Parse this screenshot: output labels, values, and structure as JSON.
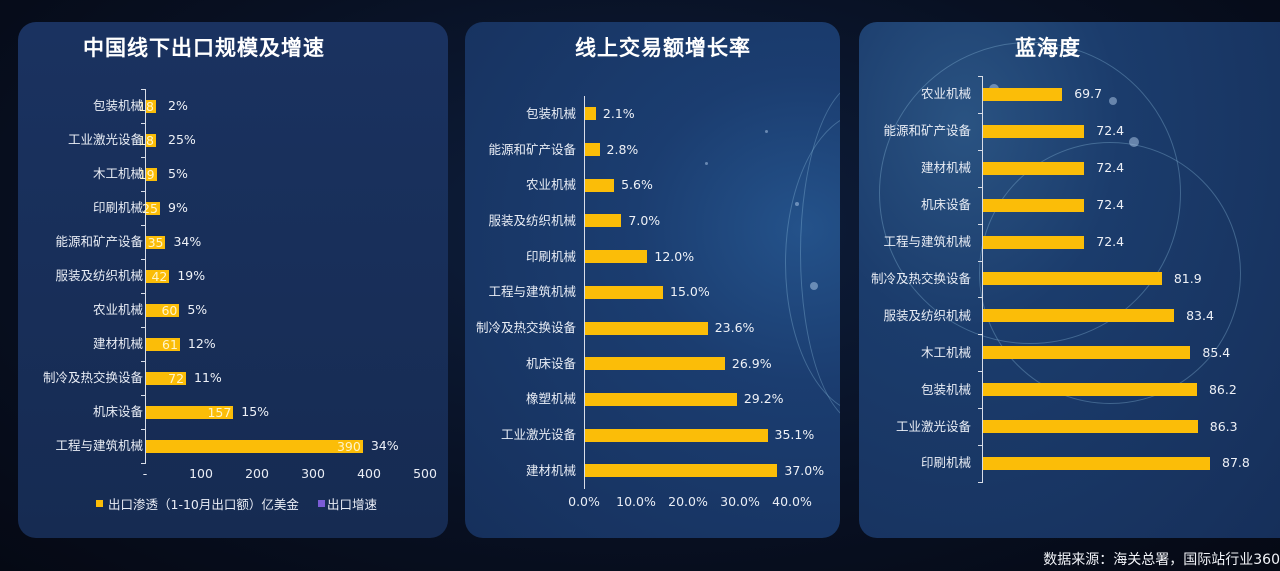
{
  "colors": {
    "bar": "#fbbd08",
    "growth_legend": "#7b5cd6",
    "panel": "#172c55",
    "background": "#070b18"
  },
  "source_note": "数据来源：海关总署，国际站行业360",
  "chart_data": [
    {
      "type": "bar",
      "orientation": "horizontal",
      "title": "中国线下出口规模及增速",
      "categories": [
        "包装机械",
        "工业激光设备",
        "木工机械",
        "印刷机械",
        "能源和矿产设备",
        "服装及纺织机械",
        "农业机械",
        "建材机械",
        "制冷及热交换设备",
        "机床设备",
        "工程与建筑机械"
      ],
      "series": [
        {
          "name": "出口渗透（1-10月出口额）亿美金",
          "values": [
            18,
            18,
            19,
            25,
            35,
            42,
            60,
            61,
            72,
            157,
            390
          ]
        },
        {
          "name": "出口增速",
          "values": [
            "2%",
            "25%",
            "5%",
            "9%",
            "34%",
            "19%",
            "5%",
            "12%",
            "11%",
            "15%",
            "34%"
          ]
        }
      ],
      "xlabel": "",
      "ylabel": "",
      "xticks": [
        "-",
        "100",
        "200",
        "300",
        "400",
        "500"
      ],
      "xlim": [
        0,
        500
      ],
      "legend_position": "bottom",
      "grid": false
    },
    {
      "type": "bar",
      "orientation": "horizontal",
      "title": "线上交易额增长率",
      "categories": [
        "包装机械",
        "能源和矿产设备",
        "农业机械",
        "服装及纺织机械",
        "印刷机械",
        "工程与建筑机械",
        "制冷及热交换设备",
        "机床设备",
        "橡塑机械",
        "工业激光设备",
        "建材机械"
      ],
      "values": [
        2.1,
        2.8,
        5.6,
        7.0,
        12.0,
        15.0,
        23.6,
        26.9,
        29.2,
        35.1,
        37.0
      ],
      "value_labels": [
        "2.1%",
        "2.8%",
        "5.6%",
        "7.0%",
        "12.0%",
        "15.0%",
        "23.6%",
        "26.9%",
        "29.2%",
        "35.1%",
        "37.0%"
      ],
      "xticks": [
        "0.0%",
        "10.0%",
        "20.0%",
        "30.0%",
        "40.0%"
      ],
      "xlim": [
        0,
        40
      ],
      "grid": false
    },
    {
      "type": "bar",
      "orientation": "horizontal",
      "title": "蓝海度",
      "categories": [
        "农业机械",
        "能源和矿产设备",
        "建材机械",
        "机床设备",
        "工程与建筑机械",
        "制冷及热交换设备",
        "服装及纺织机械",
        "木工机械",
        "包装机械",
        "工业激光设备",
        "印刷机械"
      ],
      "values": [
        69.7,
        72.4,
        72.4,
        72.4,
        72.4,
        81.9,
        83.4,
        85.4,
        86.2,
        86.3,
        87.8
      ],
      "value_labels": [
        "69.7",
        "72.4",
        "72.4",
        "72.4",
        "72.4",
        "81.9",
        "83.4",
        "85.4",
        "86.2",
        "86.3",
        "87.8"
      ],
      "xlim": [
        60,
        90
      ],
      "grid": false
    }
  ]
}
